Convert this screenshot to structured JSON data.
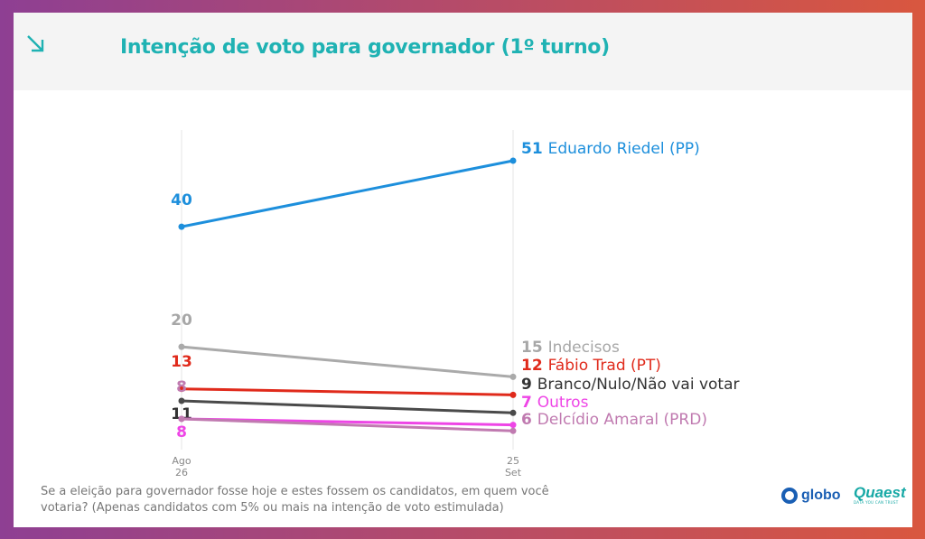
{
  "header": {
    "title": "Intenção de voto para governador (1º turno)",
    "icon": "arrow-down-right-icon",
    "accent": "#1fb2b3"
  },
  "chart_data": {
    "type": "line",
    "title": "Intenção de voto para governador (1º turno)",
    "x": [
      "Ago 26",
      "25 Set"
    ],
    "x_ticks": [
      {
        "top": "Ago",
        "bottom": "26"
      },
      {
        "top": "25",
        "bottom": "Set"
      }
    ],
    "ylim": [
      0,
      60
    ],
    "grid": "vertical lines at each date",
    "series": [
      {
        "name": "Eduardo Riedel (PP)",
        "values": [
          40,
          51
        ],
        "color": "#1d8fdc",
        "label_color": "#1d8fdc",
        "end_label": "51 Eduardo Riedel (PP)",
        "end_value": "51",
        "end_name": "Eduardo Riedel (PP)",
        "start_label": "40"
      },
      {
        "name": "Indecisos",
        "values": [
          20,
          15
        ],
        "color": "#aaaaaa",
        "label_color": "#a7a7a7",
        "end_label": "15 Indecisos",
        "end_value": "15",
        "end_name": "Indecisos",
        "start_label": "20"
      },
      {
        "name": "Fábio Trad (PT)",
        "values": [
          13,
          12
        ],
        "color": "#e02a1b",
        "label_color": "#e02a1b",
        "end_label": "12 Fábio Trad (PT)",
        "end_value": "12",
        "end_name": "Fábio Trad (PT)",
        "start_label": "13"
      },
      {
        "name": "Branco/Nulo/Não vai votar",
        "values": [
          11,
          9
        ],
        "color": "#4a4a4a",
        "label_color": "#333333",
        "end_label": "9 Branco/Nulo/Não vai votar",
        "end_value": "9",
        "end_name": "Branco/Nulo/Não vai votar",
        "start_label": "11"
      },
      {
        "name": "Outros",
        "values": [
          8,
          7
        ],
        "color": "#ee45e6",
        "label_color": "#ee45e6",
        "end_label": "7 Outros",
        "end_value": "7",
        "end_name": "Outros",
        "start_label": "8"
      },
      {
        "name": "Delcídio Amaral (PRD)",
        "values": [
          8,
          6
        ],
        "color": "#c07ab0",
        "label_color": "#c07ab0",
        "end_label": "6 Delcídio Amaral (PRD)",
        "end_value": "6",
        "end_name": "Delcídio Amaral (PRD)",
        "start_label": "8"
      }
    ]
  },
  "footnote": "Se a eleição para governador fosse hoje e estes fossem os candidatos, em quem você votaria? (Apenas candidatos com 5% ou mais na intenção de voto estimulada)",
  "logos": {
    "globo": "globo",
    "quaest": "Quaest",
    "quaest_tagline": "DATA YOU CAN TRUST"
  }
}
